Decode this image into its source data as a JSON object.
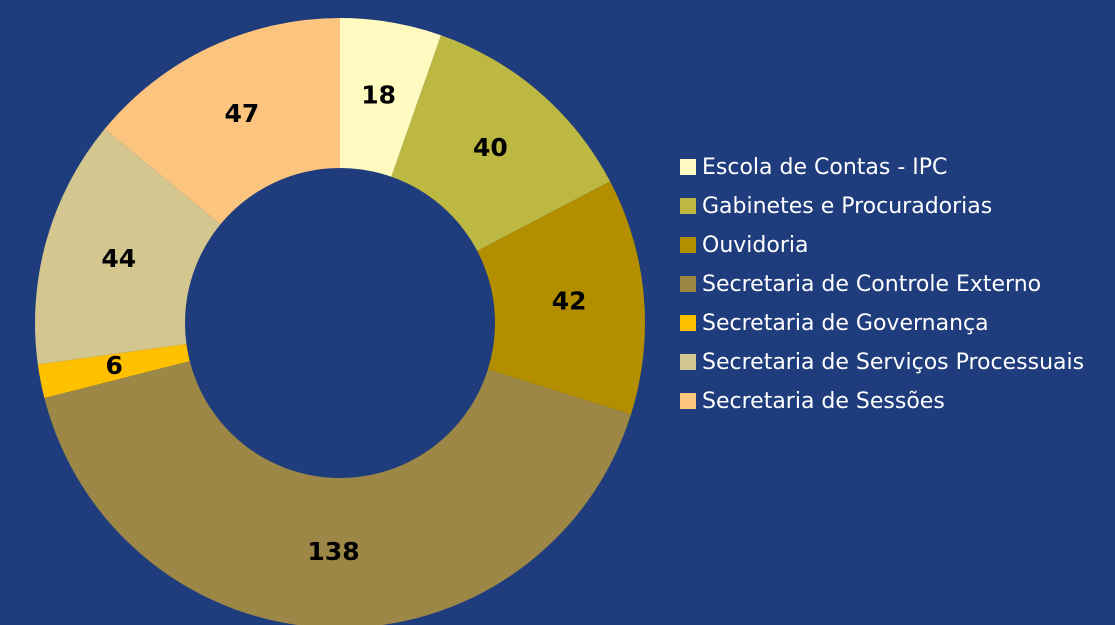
{
  "chart_data": {
    "type": "donut",
    "categories": [
      "Escola de Contas - IPC",
      "Gabinetes e Procuradorias",
      "Ouvidoria",
      "Secretaria de Controle Externo",
      "Secretaria de Governança",
      "Secretaria de Serviços Processuais",
      "Secretaria de Sessões"
    ],
    "values": [
      18,
      40,
      42,
      138,
      6,
      44,
      47
    ],
    "colors": [
      "#fffbc0",
      "#bdb842",
      "#b38f00",
      "#9c8746",
      "#ffc000",
      "#d4c68f",
      "#fcc57f"
    ],
    "legend": "right"
  }
}
